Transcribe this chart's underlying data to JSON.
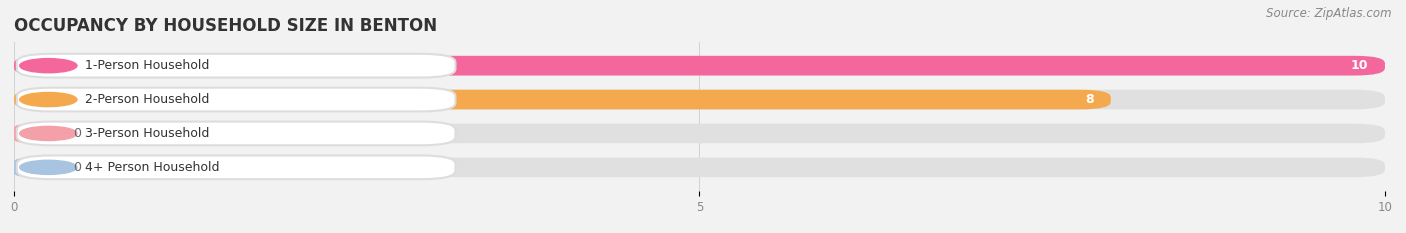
{
  "title": "OCCUPANCY BY HOUSEHOLD SIZE IN BENTON",
  "source": "Source: ZipAtlas.com",
  "categories": [
    "1-Person Household",
    "2-Person Household",
    "3-Person Household",
    "4+ Person Household"
  ],
  "values": [
    10,
    8,
    0,
    0
  ],
  "bar_colors": [
    "#F4679D",
    "#F5A94E",
    "#F4A0A8",
    "#A8C4E0"
  ],
  "background_color": "#f2f2f2",
  "bar_bg_color": "#e0e0e0",
  "xlim": [
    0,
    10
  ],
  "xticks": [
    0,
    5,
    10
  ],
  "bar_height": 0.58,
  "title_fontsize": 12,
  "source_fontsize": 8.5,
  "label_fontsize": 9,
  "value_fontsize": 9
}
